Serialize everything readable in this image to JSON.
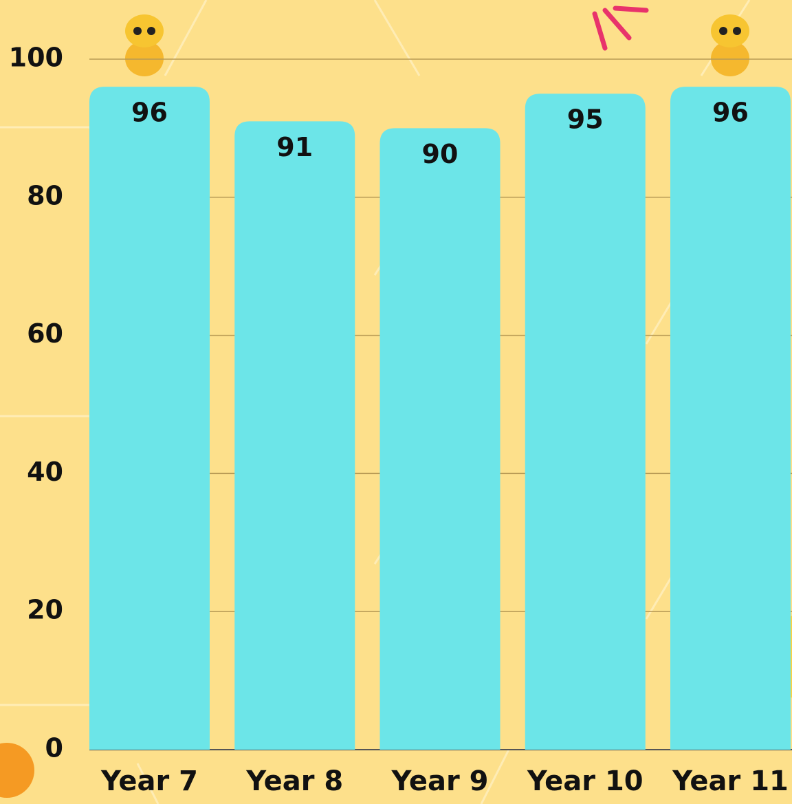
{
  "chart_data": {
    "type": "bar",
    "categories": [
      "Year 7",
      "Year 8",
      "Year 9",
      "Year 10",
      "Year 11"
    ],
    "values": [
      96,
      91,
      90,
      95,
      96
    ],
    "color": "#6ce5e8",
    "ylim": [
      0,
      100
    ],
    "yticks": [
      0,
      20,
      40,
      60,
      80,
      100
    ],
    "grid": true
  }
}
